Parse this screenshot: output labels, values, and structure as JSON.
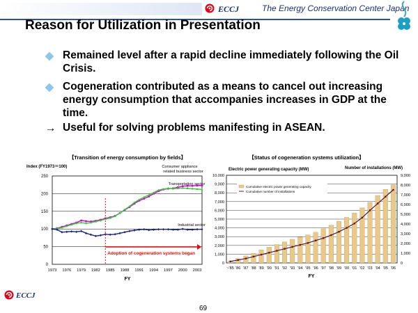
{
  "header": {
    "logo_text": "ECCJ",
    "org_name": "The Energy Conservation Center Japan"
  },
  "slide": {
    "title": "Reason for Utilization in Presentation",
    "bullets": [
      {
        "marker": "◆",
        "text": "Remained level after a rapid decline immediately following the Oil Crisis."
      },
      {
        "marker": "◆",
        "text": "Cogeneration contributed as a means to cancel out increasing energy consumption that accompanies increases in GDP at the time."
      },
      {
        "marker": "→",
        "text": "Useful for solving problems manifesting in ASEAN."
      }
    ],
    "page_number": "69"
  },
  "footer": {
    "logo_text": "ECCJ"
  },
  "colors": {
    "accent": "#2b4fa3",
    "transport": "#d400d4",
    "business": "#33cc33",
    "industrial": "#1a237e",
    "capacity_bar": "#e8c98a",
    "installations_line": "#5a1830",
    "annotation_red": "#ff0000"
  },
  "chart_data": [
    {
      "type": "line",
      "title": "【Transition of energy consumption by fields】",
      "ylabel": "Index (FY1973＝100)",
      "xlabel": "FY",
      "ylim": [
        0,
        250
      ],
      "yticks": [
        "0",
        "50",
        "100",
        "150",
        "200",
        "250"
      ],
      "x_tick_labels": [
        "1973",
        "1976",
        "1979",
        "1982",
        "1985",
        "1988",
        "1991",
        "1994",
        "1997",
        "2000",
        "2003"
      ],
      "x": [
        1973,
        1974,
        1975,
        1976,
        1977,
        1978,
        1979,
        1980,
        1981,
        1982,
        1983,
        1984,
        1985,
        1986,
        1987,
        1988,
        1989,
        1990,
        1991,
        1992,
        1993,
        1994,
        1995,
        1996,
        1997,
        1998,
        1999,
        2000,
        2001,
        2002,
        2003,
        2004
      ],
      "series": [
        {
          "name": "Transportation sector",
          "label": "Transportation sector",
          "values": [
            100,
            102,
            106,
            110,
            114,
            118,
            124,
            122,
            121,
            123,
            126,
            130,
            133,
            137,
            145,
            154,
            162,
            172,
            180,
            186,
            192,
            200,
            207,
            212,
            214,
            215,
            218,
            221,
            222,
            222,
            223,
            223
          ]
        },
        {
          "name": "Consumer appliance related business sector",
          "label": "Consumer appliance related business sector",
          "values": [
            100,
            101,
            104,
            108,
            112,
            116,
            118,
            116,
            118,
            121,
            124,
            128,
            131,
            136,
            145,
            155,
            164,
            175,
            183,
            190,
            196,
            203,
            210,
            213,
            215,
            214,
            215,
            216,
            215,
            214,
            213,
            212
          ]
        },
        {
          "name": "Industrial sector",
          "label": "Industrial sector",
          "values": [
            100,
            98,
            91,
            92,
            93,
            92,
            94,
            88,
            84,
            80,
            82,
            85,
            84,
            85,
            88,
            91,
            94,
            96,
            98,
            99,
            97,
            98,
            99,
            99,
            99,
            98,
            98,
            100,
            98,
            98,
            99,
            99
          ]
        }
      ],
      "annotation": "Adoption of cogeneration systems began",
      "annotation_year": 1984
    },
    {
      "type": "bar+line",
      "title": "【Status of cogeneration systems utilization】",
      "ylabel_left": "Electric power generating capacity (MW)",
      "ylabel_right": "Number of installations (MW)",
      "xlabel": "FY",
      "categories": [
        "~'85",
        "'86",
        "'87",
        "'88",
        "'89",
        "'90",
        "'91",
        "'92",
        "'93",
        "'94",
        "'95",
        "'96",
        "'97",
        "'98",
        "'99",
        "'00",
        "'01",
        "'02",
        "'03",
        "'04",
        "'05",
        "'06"
      ],
      "ylim_left": [
        0,
        10000
      ],
      "ylim_right": [
        0,
        9000
      ],
      "yticks_left": [
        "0",
        "1,000",
        "2,000",
        "3,000",
        "4,000",
        "5,000",
        "6,000",
        "7,000",
        "8,000",
        "9,000",
        "10,000"
      ],
      "yticks_right": [
        "0",
        "1,000",
        "2,000",
        "3,000",
        "4,000",
        "5,000",
        "6,000",
        "7,000",
        "8,000",
        "9,000"
      ],
      "series": [
        {
          "name": "Cumulative electric power generating capacity",
          "axis": "left",
          "values": [
            200,
            500,
            800,
            1100,
            1500,
            1800,
            2100,
            2400,
            2700,
            2950,
            3200,
            3500,
            3900,
            4300,
            4750,
            5200,
            5700,
            6300,
            6900,
            7700,
            8400,
            8900
          ]
        },
        {
          "name": "Cumulative number of installations",
          "axis": "right",
          "values": [
            150,
            300,
            450,
            650,
            850,
            1050,
            1250,
            1450,
            1650,
            1850,
            2050,
            2300,
            2550,
            2850,
            3200,
            3600,
            4050,
            4650,
            5400,
            6100,
            6800,
            7500
          ]
        }
      ]
    }
  ]
}
